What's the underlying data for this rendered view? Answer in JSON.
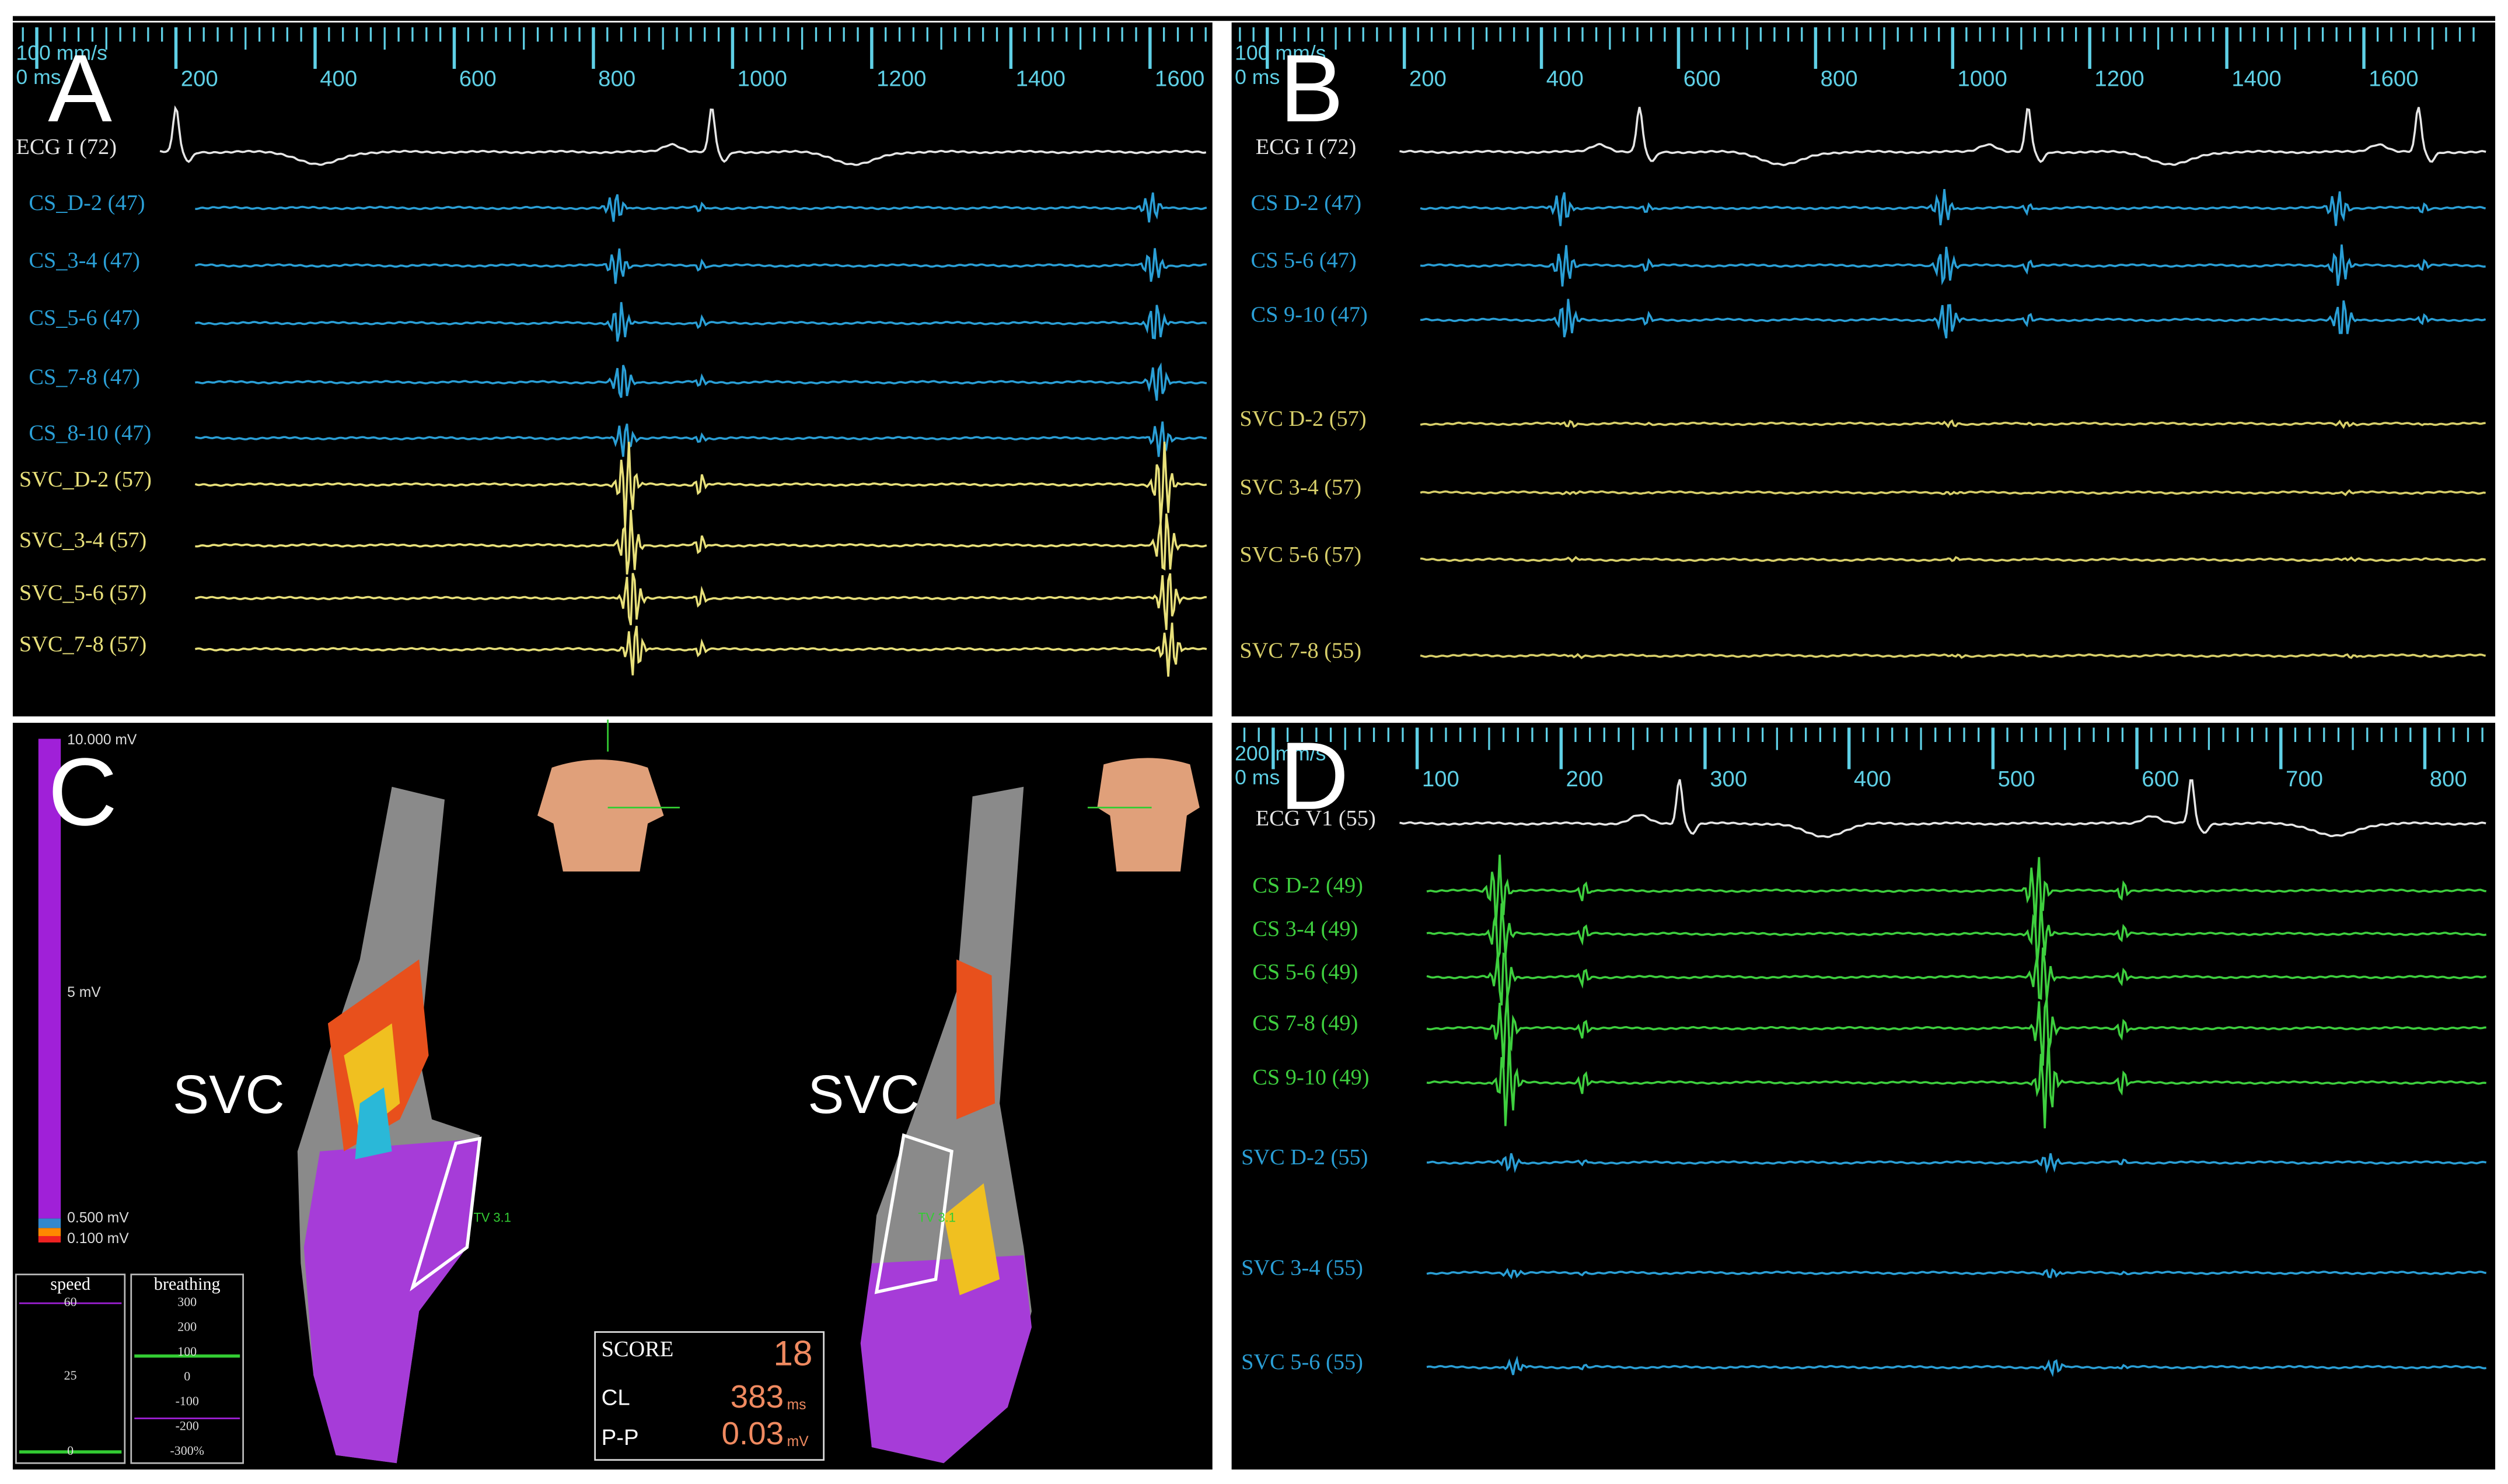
{
  "panel_a": {
    "label": "A",
    "speed": "100 mm/s",
    "origin": "0 ms",
    "ticks": [
      "200",
      "400",
      "600",
      "800",
      "1000",
      "1200",
      "1400",
      "1600"
    ],
    "channels": [
      {
        "name": "ECG I (72)",
        "color": "#e6e6e6"
      },
      {
        "name": "CS_D-2 (47)",
        "color": "#2a9fd6"
      },
      {
        "name": "CS_3-4 (47)",
        "color": "#2a9fd6"
      },
      {
        "name": "CS_5-6 (47)",
        "color": "#2a9fd6"
      },
      {
        "name": "CS_7-8 (47)",
        "color": "#2a9fd6"
      },
      {
        "name": "CS_8-10 (47)",
        "color": "#2a9fd6"
      },
      {
        "name": "SVC_D-2 (57)",
        "color": "#e8e07a"
      },
      {
        "name": "SVC_3-4 (57)",
        "color": "#e8e07a"
      },
      {
        "name": "SVC_5-6 (57)",
        "color": "#e8e07a"
      },
      {
        "name": "SVC_7-8 (57)",
        "color": "#e8e07a"
      }
    ]
  },
  "panel_b": {
    "label": "B",
    "speed": "100 mm/s",
    "origin": "0 ms",
    "ticks": [
      "200",
      "400",
      "600",
      "800",
      "1000",
      "1200",
      "1400",
      "1600"
    ],
    "channels": [
      {
        "name": "ECG I (72)",
        "color": "#e6e6e6"
      },
      {
        "name": "CS D-2 (47)",
        "color": "#2a9fd6"
      },
      {
        "name": "CS 5-6 (47)",
        "color": "#2a9fd6"
      },
      {
        "name": "CS 9-10 (47)",
        "color": "#2a9fd6"
      },
      {
        "name": "SVC D-2 (57)",
        "color": "#d8cf6a"
      },
      {
        "name": "SVC 3-4 (57)",
        "color": "#d8cf6a"
      },
      {
        "name": "SVC 5-6 (57)",
        "color": "#d8cf6a"
      },
      {
        "name": "SVC 7-8 (55)",
        "color": "#d8cf6a"
      }
    ]
  },
  "panel_c": {
    "label": "C",
    "region_labels": [
      "SVC",
      "SVC"
    ],
    "colorbar": [
      "10.000 mV",
      "5 mV",
      "0.500 mV",
      "0.100 mV"
    ],
    "tv_labels": [
      "TV 3.1",
      "TV 3.1"
    ],
    "speed": {
      "title": "speed",
      "ticks": [
        "60",
        "25",
        "0"
      ]
    },
    "breathing": {
      "title": "breathing",
      "ticks": [
        "300",
        "200",
        "100",
        "0",
        "-100",
        "-200",
        "-300%"
      ]
    },
    "score": {
      "label": "SCORE",
      "value": "18"
    },
    "cl": {
      "label": "CL",
      "value": "383",
      "unit": "ms"
    },
    "pp": {
      "label": "P-P",
      "value": "0.03",
      "unit": "mV"
    }
  },
  "panel_d": {
    "label": "D",
    "speed": "200 mm/s",
    "origin": "0 ms",
    "ticks": [
      "100",
      "200",
      "300",
      "400",
      "500",
      "600",
      "700",
      "800"
    ],
    "channels": [
      {
        "name": "ECG V1 (55)",
        "color": "#e6e6e6"
      },
      {
        "name": "CS D-2 (49)",
        "color": "#3ecf3e"
      },
      {
        "name": "CS 3-4 (49)",
        "color": "#3ecf3e"
      },
      {
        "name": "CS 5-6 (49)",
        "color": "#3ecf3e"
      },
      {
        "name": "CS 7-8 (49)",
        "color": "#3ecf3e"
      },
      {
        "name": "CS 9-10 (49)",
        "color": "#3ecf3e"
      },
      {
        "name": "SVC D-2 (55)",
        "color": "#2a9fd6"
      },
      {
        "name": "SVC 3-4 (55)",
        "color": "#2a9fd6"
      },
      {
        "name": "SVC 5-6 (55)",
        "color": "#2a9fd6"
      }
    ]
  }
}
